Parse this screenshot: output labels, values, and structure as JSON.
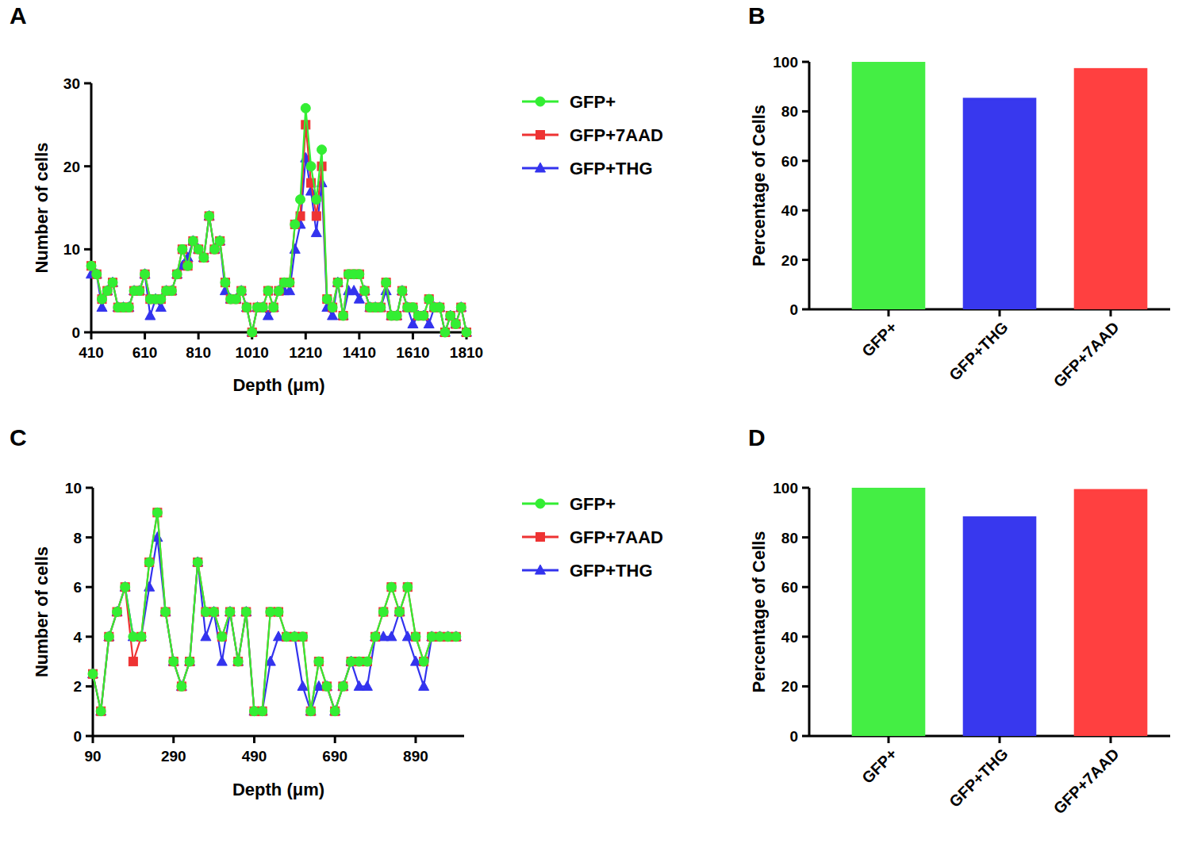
{
  "chart_data": [
    {
      "type": "line",
      "title": "A",
      "x_label": "Depth (μm)",
      "y_label": "Number of cells",
      "x": [
        410,
        430,
        450,
        470,
        490,
        510,
        530,
        550,
        570,
        590,
        610,
        630,
        650,
        670,
        690,
        710,
        730,
        750,
        770,
        790,
        810,
        830,
        850,
        870,
        890,
        910,
        930,
        950,
        970,
        990,
        1010,
        1030,
        1050,
        1070,
        1090,
        1110,
        1130,
        1150,
        1170,
        1190,
        1210,
        1230,
        1250,
        1270,
        1290,
        1310,
        1330,
        1350,
        1370,
        1390,
        1410,
        1430,
        1450,
        1470,
        1490,
        1510,
        1530,
        1550,
        1570,
        1590,
        1610,
        1630,
        1650,
        1670,
        1690,
        1710,
        1730,
        1750,
        1770,
        1790,
        1810
      ],
      "xlim": [
        410,
        1810
      ],
      "xticks": [
        410,
        610,
        810,
        1010,
        1210,
        1410,
        1610,
        1810
      ],
      "ylim": [
        0,
        30
      ],
      "yticks": [
        0,
        10,
        20,
        30
      ],
      "grid": false,
      "legend": "right",
      "series": [
        {
          "name": "GFP+",
          "color": "#33ee33",
          "marker": "circle",
          "values": [
            8,
            7,
            4,
            5,
            6,
            3,
            3,
            3,
            5,
            5,
            7,
            4,
            4,
            4,
            5,
            5,
            7,
            10,
            8,
            11,
            10,
            9,
            14,
            10,
            11,
            6,
            4,
            4,
            5,
            3,
            0,
            3,
            3,
            5,
            3,
            5,
            6,
            6,
            13,
            16,
            27,
            20,
            16,
            22,
            4,
            3,
            6,
            2,
            7,
            7,
            7,
            5,
            3,
            3,
            3,
            6,
            2,
            2,
            5,
            3,
            3,
            2,
            2,
            4,
            3,
            3,
            0,
            2,
            1,
            3,
            0
          ]
        },
        {
          "name": "GFP+7AAD",
          "color": "#ee3333",
          "marker": "square",
          "values": [
            8,
            7,
            4,
            5,
            6,
            3,
            3,
            3,
            5,
            5,
            7,
            4,
            4,
            4,
            5,
            5,
            7,
            10,
            8,
            11,
            10,
            9,
            14,
            10,
            11,
            6,
            4,
            4,
            5,
            3,
            0,
            3,
            3,
            5,
            3,
            5,
            6,
            6,
            13,
            14,
            25,
            18,
            14,
            20,
            4,
            3,
            6,
            2,
            7,
            7,
            7,
            5,
            3,
            3,
            3,
            6,
            2,
            2,
            5,
            3,
            3,
            2,
            2,
            4,
            3,
            3,
            0,
            2,
            1,
            3,
            0
          ]
        },
        {
          "name": "GFP+THG",
          "color": "#3333ee",
          "marker": "triangle",
          "values": [
            7,
            7,
            3,
            5,
            6,
            3,
            3,
            3,
            5,
            5,
            7,
            2,
            4,
            3,
            5,
            5,
            7,
            8,
            9,
            11,
            10,
            9,
            14,
            10,
            11,
            5,
            4,
            4,
            5,
            3,
            0,
            3,
            3,
            2,
            3,
            5,
            5,
            5,
            10,
            13,
            21,
            17,
            12,
            18,
            3,
            2,
            6,
            2,
            5,
            5,
            4,
            5,
            3,
            3,
            3,
            5,
            2,
            2,
            5,
            3,
            1,
            2,
            2,
            1,
            3,
            3,
            0,
            2,
            1,
            3,
            0
          ]
        }
      ]
    },
    {
      "type": "bar",
      "title": "B",
      "y_label": "Percentage of Cells",
      "categories": [
        "GFP+",
        "GFP+THG",
        "GFP+7AAD"
      ],
      "values": [
        100,
        85,
        97
      ],
      "colors": [
        "#44ee44",
        "#3838ee",
        "#ff4040"
      ],
      "ylim": [
        0,
        100
      ],
      "yticks": [
        0,
        20,
        40,
        60,
        80,
        100
      ],
      "grid": false
    },
    {
      "type": "line",
      "title": "C",
      "x_label": "Depth (μm)",
      "y_label": "Number of cells",
      "x": [
        90,
        110,
        130,
        150,
        170,
        190,
        210,
        230,
        250,
        270,
        290,
        310,
        330,
        350,
        370,
        390,
        410,
        430,
        450,
        470,
        490,
        510,
        530,
        550,
        570,
        590,
        610,
        630,
        650,
        670,
        690,
        710,
        730,
        750,
        770,
        790,
        810,
        830,
        850,
        870,
        890,
        910,
        930,
        950,
        970,
        990
      ],
      "xlim": [
        90,
        1010
      ],
      "xticks": [
        90,
        290,
        490,
        690,
        890
      ],
      "ylim": [
        0,
        10
      ],
      "yticks": [
        0,
        2,
        4,
        6,
        8,
        10
      ],
      "grid": false,
      "legend": "right",
      "series": [
        {
          "name": "GFP+",
          "color": "#33ee33",
          "marker": "circle",
          "values": [
            2.5,
            1,
            4,
            5,
            6,
            4,
            4,
            7,
            9,
            5,
            3,
            2,
            3,
            7,
            5,
            5,
            4,
            5,
            3,
            5,
            1,
            1,
            5,
            5,
            4,
            4,
            4,
            1,
            3,
            2,
            1,
            2,
            3,
            3,
            3,
            4,
            5,
            6,
            5,
            6,
            4,
            3,
            4,
            4,
            4,
            4
          ]
        },
        {
          "name": "GFP+7AAD",
          "color": "#ee3333",
          "marker": "square",
          "values": [
            2.5,
            1,
            4,
            5,
            6,
            3,
            4,
            7,
            9,
            5,
            3,
            2,
            3,
            7,
            5,
            5,
            4,
            5,
            3,
            5,
            1,
            1,
            5,
            5,
            4,
            4,
            4,
            1,
            3,
            2,
            1,
            2,
            3,
            3,
            3,
            4,
            5,
            6,
            5,
            6,
            4,
            3,
            4,
            4,
            4,
            4
          ]
        },
        {
          "name": "GFP+THG",
          "color": "#3333ee",
          "marker": "triangle",
          "values": [
            2.5,
            1,
            4,
            5,
            6,
            4,
            4,
            6,
            8,
            5,
            3,
            2,
            3,
            7,
            4,
            5,
            3,
            5,
            3,
            5,
            1,
            1,
            3,
            4,
            4,
            4,
            2,
            1,
            2,
            2,
            1,
            2,
            3,
            2,
            2,
            4,
            4,
            4,
            5,
            4,
            3,
            2,
            4,
            4,
            4,
            4
          ]
        }
      ]
    },
    {
      "type": "bar",
      "title": "D",
      "y_label": "Percentage of Cells",
      "categories": [
        "GFP+",
        "GFP+THG",
        "GFP+7AAD"
      ],
      "values": [
        100,
        88,
        99
      ],
      "colors": [
        "#44ee44",
        "#3838ee",
        "#ff4040"
      ],
      "ylim": [
        0,
        100
      ],
      "yticks": [
        0,
        20,
        40,
        60,
        80,
        100
      ],
      "grid": false
    }
  ]
}
